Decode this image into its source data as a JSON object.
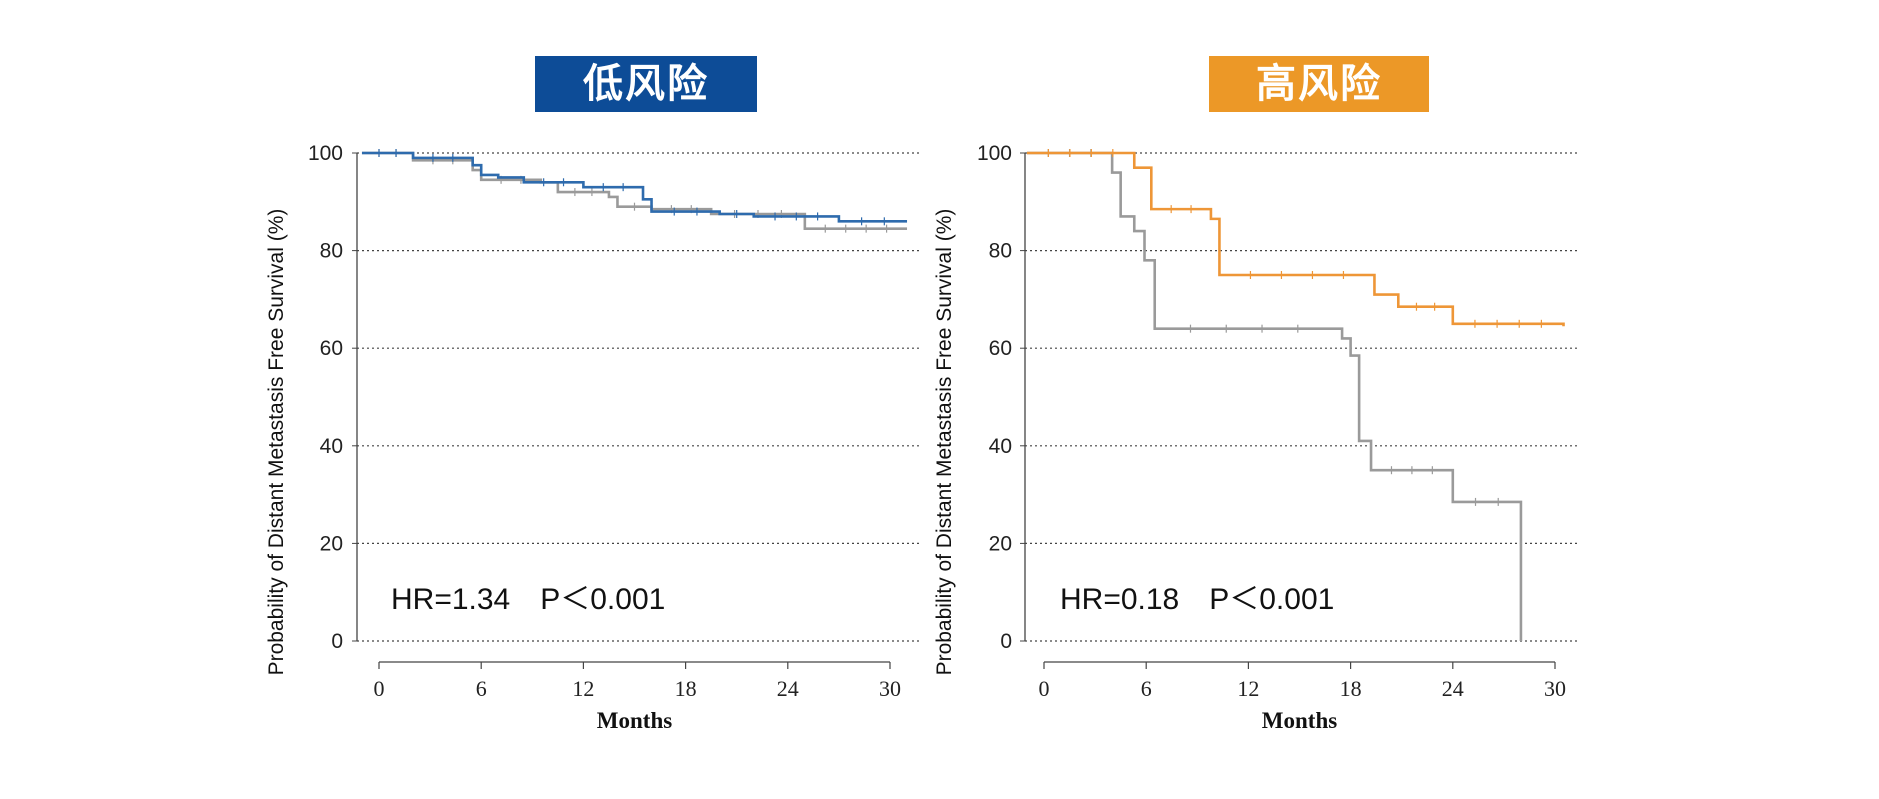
{
  "chart_data": [
    {
      "type": "line",
      "title": "低风险",
      "title_bg": "#0d4c97",
      "xlabel": "Months",
      "ylabel": "Probability of Distant Metastasis Free Survival (%)",
      "xlim": [
        -1,
        31
      ],
      "ylim": [
        0,
        100
      ],
      "xticks": [
        "0",
        "6",
        "12",
        "18",
        "24",
        "30"
      ],
      "yticks": [
        "0",
        "20",
        "40",
        "60",
        "80",
        "100"
      ],
      "grid": "horizontal dotted",
      "annotation": "HR=1.34　P＜0.001",
      "series": [
        {
          "color": "#9a9a9a",
          "x": [
            -1,
            2,
            5.5,
            6,
            9.5,
            10.5,
            13.5,
            14,
            16,
            19.5,
            25,
            31
          ],
          "y": [
            100,
            98.5,
            96.5,
            94.5,
            94,
            92,
            91,
            89,
            88.5,
            87.5,
            84.5,
            84.5
          ]
        },
        {
          "color": "#2e6bad",
          "x": [
            -1,
            2,
            5.5,
            6,
            7,
            8.5,
            12,
            15.5,
            16,
            20,
            22,
            27,
            31
          ],
          "y": [
            100,
            99,
            97.5,
            95.5,
            95,
            94,
            93,
            90.5,
            88,
            87.5,
            87,
            86,
            86
          ]
        }
      ]
    },
    {
      "type": "line",
      "title": "高风险",
      "title_bg": "#ec9827",
      "xlabel": "Months",
      "ylabel": "Probability of Distant Metastasis Free Survival (%)",
      "xlim": [
        -1,
        30.5
      ],
      "ylim": [
        0,
        100
      ],
      "xticks": [
        "0",
        "6",
        "12",
        "18",
        "24",
        "30"
      ],
      "yticks": [
        "0",
        "20",
        "40",
        "60",
        "80",
        "100"
      ],
      "grid": "horizontal dotted",
      "annotation": "HR=0.18　P＜0.001",
      "series": [
        {
          "color": "#9a9a9a",
          "x": [
            -1,
            4,
            4.5,
            5.3,
            5.9,
            6.5,
            17,
            17.5,
            18,
            18.5,
            19.2,
            24,
            28,
            28
          ],
          "y": [
            100,
            96,
            87,
            84,
            78,
            64,
            64,
            62,
            58.5,
            41,
            35,
            28.5,
            28.5,
            0
          ]
        },
        {
          "color": "#ee9637",
          "x": [
            -1,
            5.3,
            6.3,
            9.8,
            10.3,
            19.4,
            20.8,
            24,
            30.5
          ],
          "y": [
            100,
            97,
            88.5,
            86.5,
            75,
            71,
            68.5,
            65,
            64.5
          ]
        }
      ]
    }
  ]
}
